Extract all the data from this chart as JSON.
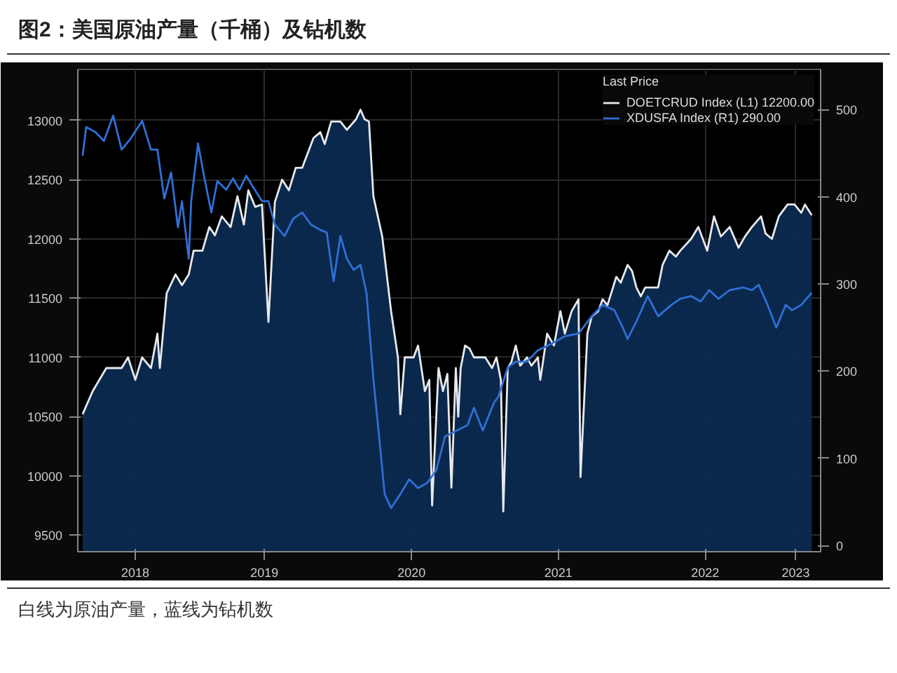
{
  "chart_data": {
    "type": "area",
    "title": "图2：美国原油产量（千桶）及钻机数",
    "legend_title": "Last Price",
    "annotations": [
      "白线为原油产量，蓝线为钻机数"
    ],
    "xlim": [
      "2018-03-25",
      "2023-04-15"
    ],
    "xticks": [
      {
        "value": "2018-08-15",
        "label": "2018"
      },
      {
        "value": "2019-07-02",
        "label": "2019"
      },
      {
        "value": "2020-07-02",
        "label": "2020"
      },
      {
        "value": "2021-07-02",
        "label": "2021"
      },
      {
        "value": "2022-07-02",
        "label": "2022"
      },
      {
        "value": "2023-02-12",
        "label": "2023"
      }
    ],
    "ylim": [
      9360,
      13430
    ],
    "yticks": [
      9500,
      10000,
      10500,
      11000,
      11500,
      12000,
      12500,
      13000
    ],
    "y2lim": [
      -7,
      546
    ],
    "y2ticks": [
      0,
      100,
      200,
      300,
      400,
      500
    ],
    "grid": true,
    "legend": "top right",
    "series": [
      {
        "name": "DOETCRUD Index (L1) 12200.00",
        "color": "#e6e9ee",
        "x": [
          "2018-04-06",
          "2018-05-01",
          "2018-06-04",
          "2018-07-12",
          "2018-07-28",
          "2018-08-15",
          "2018-09-01",
          "2018-09-23",
          "2018-10-09",
          "2018-10-15",
          "2018-11-01",
          "2018-11-23",
          "2018-12-09",
          "2018-12-26",
          "2019-01-07",
          "2019-01-29",
          "2019-02-15",
          "2019-03-01",
          "2019-03-18",
          "2019-04-09",
          "2019-04-26",
          "2019-05-12",
          "2019-05-23",
          "2019-06-09",
          "2019-06-26",
          "2019-07-12",
          "2019-07-28",
          "2019-08-15",
          "2019-09-01",
          "2019-09-18",
          "2019-10-04",
          "2019-11-01",
          "2019-11-18",
          "2019-11-29",
          "2019-12-15",
          "2020-01-07",
          "2020-01-23",
          "2020-02-15",
          "2020-02-26",
          "2020-03-07",
          "2020-03-18",
          "2020-03-29",
          "2020-04-20",
          "2020-05-12",
          "2020-05-29",
          "2020-06-04",
          "2020-06-15",
          "2020-07-07",
          "2020-07-18",
          "2020-08-04",
          "2020-08-15",
          "2020-08-22",
          "2020-09-07",
          "2020-09-18",
          "2020-09-29",
          "2020-10-09",
          "2020-10-20",
          "2020-10-26",
          "2020-11-01",
          "2020-11-12",
          "2020-11-23",
          "2020-12-04",
          "2021-01-01",
          "2021-01-18",
          "2021-01-29",
          "2021-02-09",
          "2021-02-15",
          "2021-02-26",
          "2021-03-07",
          "2021-03-18",
          "2021-03-29",
          "2021-04-15",
          "2021-04-26",
          "2021-05-12",
          "2021-05-18",
          "2021-06-04",
          "2021-06-21",
          "2021-07-07",
          "2021-07-18",
          "2021-08-04",
          "2021-08-21",
          "2021-08-26",
          "2021-09-12",
          "2021-09-23",
          "2021-10-09",
          "2021-10-20",
          "2021-11-01",
          "2021-11-23",
          "2021-12-04",
          "2021-12-21",
          "2022-01-01",
          "2022-01-12",
          "2022-01-23",
          "2022-02-03",
          "2022-03-07",
          "2022-03-18",
          "2022-04-04",
          "2022-04-20",
          "2022-05-01",
          "2022-05-28",
          "2022-06-15",
          "2022-07-07",
          "2022-07-24",
          "2022-08-10",
          "2022-09-01",
          "2022-09-23",
          "2022-10-09",
          "2022-10-26",
          "2022-11-18",
          "2022-11-29",
          "2022-12-15",
          "2023-01-01",
          "2023-01-23",
          "2023-02-09",
          "2023-02-26",
          "2023-03-07",
          "2023-03-24"
        ],
        "values": [
          10520,
          10715,
          10910,
          10910,
          11000,
          10810,
          11000,
          10910,
          11200,
          10910,
          11540,
          11700,
          11610,
          11700,
          11900,
          11900,
          12100,
          12030,
          12190,
          12100,
          12360,
          12120,
          12410,
          12270,
          12290,
          11300,
          12310,
          12500,
          12410,
          12600,
          12600,
          12850,
          12900,
          12800,
          12990,
          12990,
          12920,
          13010,
          13090,
          13010,
          12990,
          12360,
          12020,
          11390,
          11000,
          10520,
          11000,
          11000,
          11100,
          10715,
          10810,
          9750,
          10910,
          10715,
          10860,
          9900,
          10910,
          10500,
          10910,
          11100,
          11075,
          11000,
          11000,
          10910,
          11000,
          10810,
          9700,
          10910,
          10960,
          11100,
          10930,
          11000,
          10930,
          11000,
          10810,
          11200,
          11100,
          11390,
          11200,
          11390,
          11490,
          9990,
          11200,
          11345,
          11390,
          11490,
          11440,
          11680,
          11630,
          11780,
          11730,
          11590,
          11515,
          11590,
          11590,
          11780,
          11900,
          11850,
          11900,
          12000,
          12100,
          11900,
          12190,
          12020,
          12100,
          11925,
          12020,
          12100,
          12190,
          12045,
          12000,
          12190,
          12290,
          12290,
          12220,
          12290,
          12200
        ]
      },
      {
        "name": "XDUSFA Index (R1) 290.00",
        "type": "line",
        "axis": "y2",
        "color": "#2f6fd6",
        "x": [
          "2018-04-06",
          "2018-04-15",
          "2018-05-08",
          "2018-05-29",
          "2018-06-21",
          "2018-07-12",
          "2018-08-04",
          "2018-09-01",
          "2018-09-23",
          "2018-10-09",
          "2018-10-26",
          "2018-11-12",
          "2018-11-29",
          "2018-12-09",
          "2018-12-26",
          "2019-01-01",
          "2019-01-18",
          "2019-02-03",
          "2019-02-20",
          "2019-03-07",
          "2019-03-29",
          "2019-04-15",
          "2019-05-01",
          "2019-05-18",
          "2019-06-04",
          "2019-06-26",
          "2019-07-12",
          "2019-07-28",
          "2019-08-21",
          "2019-09-12",
          "2019-10-04",
          "2019-10-26",
          "2019-11-18",
          "2019-12-04",
          "2019-12-21",
          "2020-01-07",
          "2020-01-23",
          "2020-02-09",
          "2020-02-26",
          "2020-03-12",
          "2020-03-29",
          "2020-04-15",
          "2020-04-26",
          "2020-05-12",
          "2020-06-04",
          "2020-06-26",
          "2020-07-18",
          "2020-08-10",
          "2020-09-01",
          "2020-09-23",
          "2020-11-18",
          "2020-12-04",
          "2020-12-26",
          "2021-01-23",
          "2021-02-03",
          "2021-02-26",
          "2021-03-18",
          "2021-04-15",
          "2021-05-12",
          "2021-06-09",
          "2021-07-18",
          "2021-08-21",
          "2021-09-23",
          "2021-10-20",
          "2021-11-18",
          "2021-12-09",
          "2021-12-21",
          "2022-01-12",
          "2022-02-09",
          "2022-03-07",
          "2022-04-09",
          "2022-05-01",
          "2022-05-28",
          "2022-06-21",
          "2022-07-12",
          "2022-08-04",
          "2022-09-01",
          "2022-10-04",
          "2022-10-26",
          "2022-11-12",
          "2022-12-04",
          "2022-12-26",
          "2023-01-18",
          "2023-02-03",
          "2023-02-26",
          "2023-03-24"
        ],
        "values": [
          447,
          480,
          474,
          464,
          493,
          454,
          467,
          487,
          454,
          454,
          398,
          428,
          365,
          395,
          329,
          395,
          461,
          421,
          382,
          418,
          408,
          421,
          408,
          424,
          411,
          395,
          395,
          368,
          355,
          375,
          382,
          368,
          362,
          359,
          303,
          355,
          329,
          316,
          322,
          289,
          191,
          112,
          59,
          43,
          59,
          76,
          66,
          72,
          86,
          125,
          138,
          158,
          132,
          164,
          171,
          204,
          211,
          211,
          224,
          230,
          240,
          243,
          263,
          276,
          270,
          250,
          237,
          257,
          286,
          263,
          276,
          283,
          286,
          280,
          293,
          283,
          293,
          296,
          293,
          299,
          276,
          250,
          276,
          270,
          276,
          290
        ]
      }
    ]
  }
}
